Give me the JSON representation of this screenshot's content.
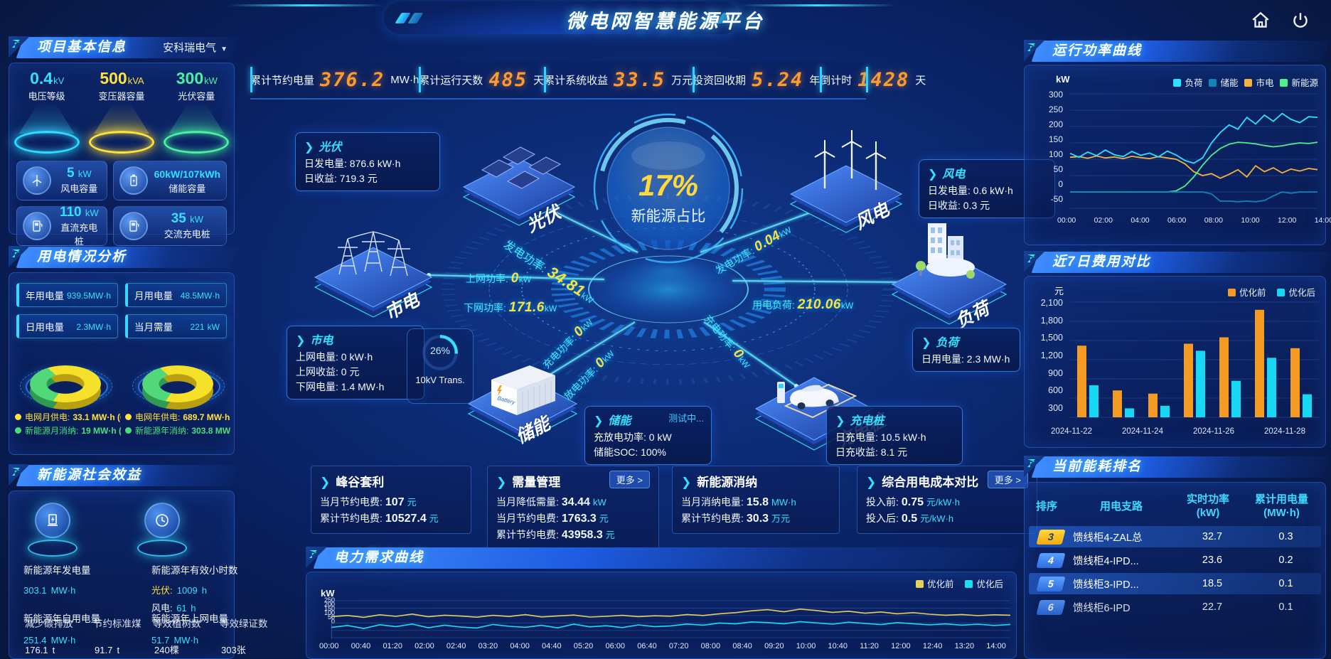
{
  "app": {
    "title": "微电网智慧能源平台"
  },
  "stats_bar": {
    "items": [
      {
        "label": "累计节约电量",
        "value": "376.2",
        "unit": "MW·h"
      },
      {
        "label": "累计运行天数",
        "value": "485",
        "unit": "天"
      },
      {
        "label": "累计系统收益",
        "value": "33.5",
        "unit": "万元"
      },
      {
        "label": "投资回收期",
        "value": "5.24",
        "unit": "年"
      },
      {
        "label": "倒计时",
        "value": "1428",
        "unit": "天"
      }
    ]
  },
  "project": {
    "title": "项目基本信息",
    "company": "安科瑞电气",
    "podiums": [
      {
        "value": "0.4",
        "unit": "kV",
        "label": "电压等级"
      },
      {
        "value": "500",
        "unit": "kVA",
        "label": "变压器容量"
      },
      {
        "value": "300",
        "unit": "kW",
        "label": "光伏容量"
      }
    ],
    "cards": [
      {
        "value": "5",
        "unit": "kW",
        "label": "风电容量"
      },
      {
        "value": "60kW/107kWh",
        "unit": "",
        "label": "储能容量"
      },
      {
        "value": "110",
        "unit": "kW",
        "label": "直流充电桩"
      },
      {
        "value": "35",
        "unit": "kW",
        "label": "交流充电桩"
      }
    ]
  },
  "usage": {
    "title": "用电情况分析",
    "chips": [
      {
        "label": "年用电量",
        "value": "939.5",
        "unit": "MW·h"
      },
      {
        "label": "月用电量",
        "value": "48.5",
        "unit": "MW·h"
      },
      {
        "label": "日用电量",
        "value": "2.3",
        "unit": "MW·h"
      },
      {
        "label": "当月需量",
        "value": "221",
        "unit": "kW"
      }
    ],
    "donut_month": {
      "grid_pct": 64,
      "renew_pct": 36
    },
    "donut_year": {
      "grid_pct": 69,
      "renew_pct": 31
    },
    "legends": [
      {
        "label": "电网月供电:",
        "value": "33.1 MW·h (64%)"
      },
      {
        "label": "新能源月消纳:",
        "value": "19 MW·h (36%)"
      },
      {
        "label": "电网年供电:",
        "value": "689.7 MW·h (69%)"
      },
      {
        "label": "新能源年消纳:",
        "value": "303.8 MW·h (31%"
      }
    ]
  },
  "benefit": {
    "title": "新能源社会效益",
    "gen_label": "新能源年发电量",
    "gen_value": "303.1",
    "gen_unit": "MW·h",
    "hours_label": "新能源年有效小时数",
    "pv_label": "光伏:",
    "pv_value": "1009",
    "pv_unit": "h",
    "wind_label": "风电:",
    "wind_value": "61",
    "wind_unit": "h",
    "self_label": "新能源年自用电量",
    "self_value": "251.4",
    "self_unit": "MW·h",
    "export_label": "新能源年上网电量",
    "export_value": "51.7",
    "export_unit": "MW·h",
    "co2_label": "减少碳排放",
    "co2_value": "176.1",
    "co2_unit": "t",
    "coal_label": "节约标准煤",
    "coal_value": "91.7",
    "coal_unit": "t",
    "tree_label": "等效植树数",
    "tree_value": "240",
    "tree_unit": "棵",
    "cert_label": "等效绿证数",
    "cert_value": "303",
    "cert_unit": "张"
  },
  "stage": {
    "ring_value": "17%",
    "ring_label": "新能源占比",
    "islands": {
      "pv": "光伏",
      "wind": "风电",
      "grid": "市电",
      "load": "负荷",
      "storage": "储能",
      "charger": "充电桩"
    },
    "flows": {
      "pv_gen": {
        "label": "发电功率:",
        "value": "34.81",
        "unit": "kW"
      },
      "up": {
        "label": "上网功率:",
        "value": "0",
        "unit": "kW"
      },
      "down": {
        "label": "下网功率:",
        "value": "171.6",
        "unit": "kW"
      },
      "chg": {
        "label": "充电功率:",
        "value": "0",
        "unit": "kW"
      },
      "dis": {
        "label": "放电功率:",
        "value": "0",
        "unit": "kW"
      },
      "ev": {
        "label": "充电功率:",
        "value": "0",
        "unit": "kW"
      },
      "wind_gen": {
        "label": "发电功率:",
        "value": "0.04",
        "unit": "kW"
      },
      "load": {
        "label": "用电负荷:",
        "value": "210.06",
        "unit": "kW"
      }
    },
    "transformer": {
      "pct": "26%",
      "label": "10kV Trans."
    },
    "boxes": {
      "pv": {
        "title": "光伏",
        "r1l": "日发电量:",
        "r1v": "876.6 kW·h",
        "r2l": "日收益:",
        "r2v": "719.3 元"
      },
      "wind": {
        "title": "风电",
        "r1l": "日发电量:",
        "r1v": "0.6 kW·h",
        "r2l": "日收益:",
        "r2v": "0.3 元"
      },
      "grid": {
        "title": "市电",
        "r1l": "上网电量:",
        "r1v": "0 kW·h",
        "r2l": "上网收益:",
        "r2v": "0 元",
        "r3l": "下网电量:",
        "r3v": "1.4 MW·h"
      },
      "storage": {
        "title": "储能",
        "badge": "测试中...",
        "r1l": "充放电功率:",
        "r1v": "0 kW",
        "r2l": "储能SOC:",
        "r2v": "100%"
      },
      "charger": {
        "title": "充电桩",
        "r1l": "日充电量:",
        "r1v": "10.5 kW·h",
        "r2l": "日充收益:",
        "r2v": "8.1 元"
      },
      "load": {
        "title": "负荷",
        "r1l": "日用电量:",
        "r1v": "2.3 MW·h"
      }
    }
  },
  "kpis": [
    {
      "title": "峰谷套利",
      "more": "",
      "rows": [
        {
          "l": "当月节约电费:",
          "v": "107",
          "u": "元"
        },
        {
          "l": "累计节约电费:",
          "v": "10527.4",
          "u": "元"
        }
      ]
    },
    {
      "title": "需量管理",
      "more": "更多 >",
      "rows": [
        {
          "l": "当月降低需量:",
          "v": "34.44",
          "u": "kW"
        },
        {
          "l": "当月节约电费:",
          "v": "1763.3",
          "u": "元"
        },
        {
          "l": "累计节约电费:",
          "v": "43958.3",
          "u": "元"
        }
      ]
    },
    {
      "title": "新能源消纳",
      "more": "",
      "rows": [
        {
          "l": "当月消纳电量:",
          "v": "15.8",
          "u": "MW·h"
        },
        {
          "l": "累计节约电费:",
          "v": "30.3",
          "u": "万元"
        }
      ]
    },
    {
      "title": "综合用电成本对比",
      "more": "更多 >",
      "rows": [
        {
          "l": "投入前:",
          "v": "0.75",
          "u": "元/kW·h"
        },
        {
          "l": "投入后:",
          "v": "0.5",
          "u": "元/kW·h"
        }
      ]
    }
  ],
  "ranking": {
    "title": "当前能耗排名",
    "col_rank": "排序",
    "col_branch": "用电支路",
    "col_power": "实时功率",
    "col_power_unit": "(kW)",
    "col_energy": "累计用电量",
    "col_energy_unit": "(MW·h)",
    "rows": [
      {
        "rank": "3",
        "branch": "馈线柜4-ZAL总",
        "power": "32.7",
        "energy": "0.3"
      },
      {
        "rank": "4",
        "branch": "馈线柜4-IPD...",
        "power": "23.6",
        "energy": "0.2"
      },
      {
        "rank": "5",
        "branch": "馈线柜3-IPD...",
        "power": "18.5",
        "energy": "0.1"
      },
      {
        "rank": "6",
        "branch": "馈线柜6-IPD",
        "power": "22.7",
        "energy": "0.1"
      }
    ]
  },
  "chart_data": [
    {
      "id": "power_curve",
      "type": "line",
      "title": "运行功率曲线",
      "ylabel": "kW",
      "ylim": [
        -50,
        300
      ],
      "yticks": [
        300,
        250,
        200,
        150,
        100,
        50,
        0,
        -50
      ],
      "xticks": [
        "00:00",
        "02:00",
        "04:00",
        "06:00",
        "08:00",
        "10:00",
        "12:00",
        "14:00"
      ],
      "legend_position": "top-right",
      "grid": true,
      "series": [
        {
          "name": "负荷",
          "color": "#2ee0ff",
          "values": [
            118,
            106,
            122,
            111,
            128,
            114,
            108,
            124,
            112,
            119,
            107,
            125,
            113,
            96,
            88,
            104,
            150,
            182,
            205,
            192,
            228,
            208,
            235,
            216,
            240,
            222,
            212,
            230,
            228
          ]
        },
        {
          "name": "储能",
          "color": "#1184b8",
          "values": [
            0,
            0,
            0,
            0,
            0,
            0,
            0,
            0,
            0,
            0,
            0,
            0,
            0,
            0,
            0,
            0,
            -6,
            -28,
            -28,
            -30,
            -28,
            -30,
            -26,
            -12,
            0,
            -4,
            0,
            0,
            0
          ]
        },
        {
          "name": "市电",
          "color": "#f2b23e",
          "values": [
            106,
            108,
            103,
            110,
            104,
            107,
            102,
            109,
            105,
            102,
            108,
            104,
            100,
            86,
            62,
            50,
            56,
            42,
            54,
            68,
            46,
            80,
            62,
            74,
            58,
            70,
            64,
            72,
            68
          ]
        },
        {
          "name": "新能源",
          "color": "#4ef08a",
          "values": [
            0,
            0,
            0,
            0,
            0,
            0,
            0,
            0,
            0,
            0,
            0,
            0,
            3,
            18,
            46,
            82,
            112,
            133,
            146,
            152,
            150,
            147,
            142,
            138,
            141,
            146,
            150,
            148,
            152
          ]
        }
      ]
    },
    {
      "id": "cost_compare",
      "type": "bar",
      "title": "近7日费用对比",
      "ylabel": "元",
      "ylim": [
        300,
        2100
      ],
      "yticks": [
        "2,100",
        "1,800",
        "1,500",
        "1,200",
        "900",
        "600",
        "300"
      ],
      "categories": [
        "2024-11-22",
        "2024-11-23",
        "2024-11-24",
        "2024-11-25",
        "2024-11-26",
        "2024-11-27",
        "2024-11-28"
      ],
      "xticks": [
        "2024-11-22",
        "2024-11-24",
        "2024-11-26",
        "2024-11-28"
      ],
      "legend_position": "top-right",
      "grid": true,
      "series": [
        {
          "name": "优化前",
          "color": "#f59a23",
          "values": [
            1420,
            720,
            670,
            1450,
            1550,
            1980,
            1380
          ]
        },
        {
          "name": "优化后",
          "color": "#18d7f2",
          "values": [
            800,
            440,
            480,
            1340,
            870,
            1230,
            660
          ]
        }
      ]
    },
    {
      "id": "demand_curve",
      "type": "line",
      "title": "电力需求曲线",
      "ylabel": "kW",
      "ylim": [
        0,
        260
      ],
      "yticks": [
        250,
        200,
        150,
        100,
        50,
        0
      ],
      "xticks": [
        "00:00",
        "00:40",
        "01:20",
        "02:00",
        "02:40",
        "03:20",
        "04:00",
        "04:40",
        "05:20",
        "06:00",
        "06:40",
        "07:20",
        "08:00",
        "08:40",
        "09:20",
        "10:00",
        "10:40",
        "11:20",
        "12:00",
        "12:40",
        "13:20",
        "14:00"
      ],
      "legend_position": "top-right",
      "grid": true,
      "series": [
        {
          "name": "优化前",
          "color": "#e8cf5a",
          "values": [
            148,
            156,
            143,
            161,
            150,
            166,
            147,
            158,
            152,
            144,
            157,
            149,
            162,
            146,
            153,
            159,
            145,
            150,
            157,
            148,
            154,
            151,
            163,
            156,
            168,
            176,
            189,
            197,
            182,
            201,
            191,
            178,
            186,
            172,
            181,
            168,
            176,
            165,
            158,
            163,
            155,
            161,
            158
          ]
        },
        {
          "name": "优化后",
          "color": "#19dff2",
          "values": [
            72,
            86,
            65,
            91,
            78,
            96,
            70,
            88,
            75,
            68,
            93,
            80,
            73,
            87,
            69,
            95,
            76,
            84,
            71,
            90,
            77,
            83,
            96,
            88,
            103,
            97,
            111,
            106,
            98,
            113,
            104,
            95,
            109,
            100,
            92,
            106,
            98,
            90,
            97,
            88,
            95,
            86,
            93
          ]
        }
      ]
    }
  ]
}
